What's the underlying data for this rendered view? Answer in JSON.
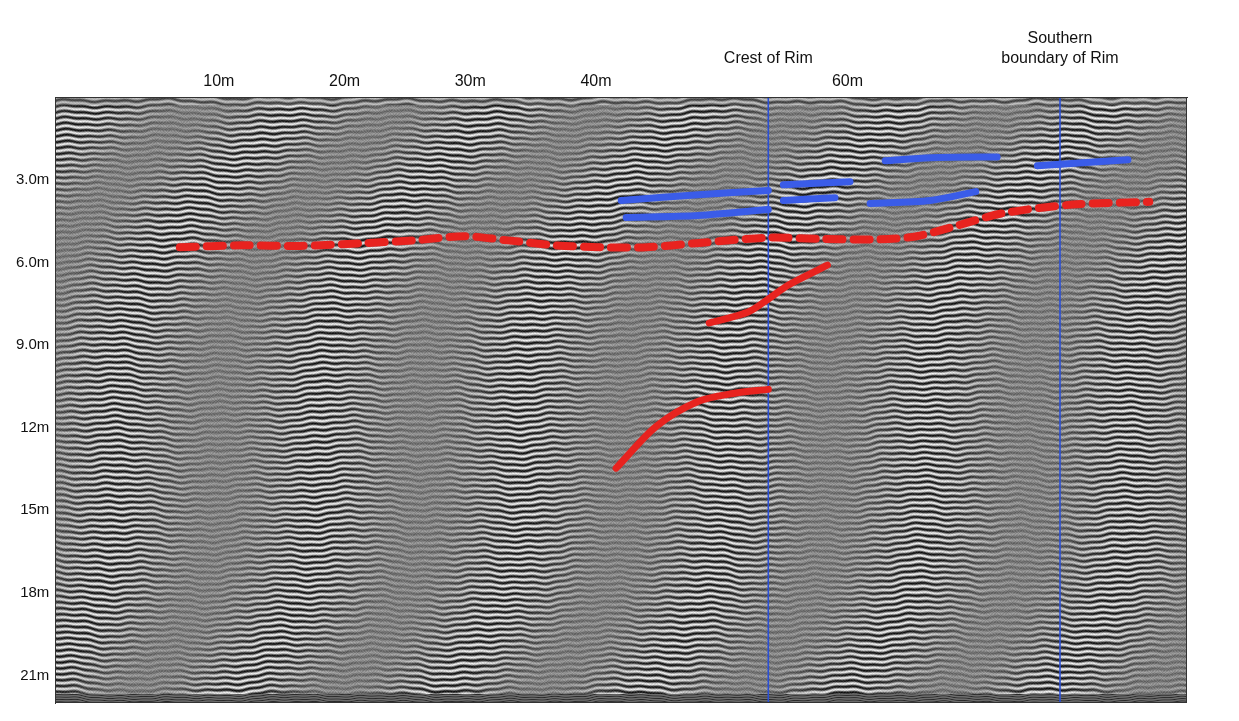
{
  "chart_data": {
    "type": "line",
    "xlim": [
      -3,
      87
    ],
    "xticks": [
      {
        "value": 10,
        "label": "10m"
      },
      {
        "value": 20,
        "label": "20m"
      },
      {
        "value": 30,
        "label": "30m"
      },
      {
        "value": 40,
        "label": "40m"
      },
      {
        "value": 60,
        "label": "60m"
      }
    ],
    "ylim": [
      22,
      0
    ],
    "yticks": [
      {
        "value": 3,
        "label": "3.0m"
      },
      {
        "value": 6,
        "label": "6.0m"
      },
      {
        "value": 9,
        "label": "9.0m"
      },
      {
        "value": 12,
        "label": "12m"
      },
      {
        "value": 15,
        "label": "15m"
      },
      {
        "value": 18,
        "label": "18m"
      },
      {
        "value": 21,
        "label": "21m"
      }
    ],
    "grid": false,
    "annotations": [
      {
        "text": "Crest of Rim",
        "x": 53.7
      },
      {
        "text": "Southern boundary of Rim",
        "x": 76.9
      }
    ],
    "series": [
      {
        "color": "#e8231f",
        "line_style": "dashed",
        "x": [
          6.9,
          11.8,
          16.5,
          21.5,
          25.5,
          29.5,
          33,
          36.8,
          40.5,
          44,
          48,
          53.7,
          58,
          62.6,
          65.5,
          68.2,
          72.3,
          77.9,
          84
        ],
        "values": [
          5.45,
          5.38,
          5.4,
          5.3,
          5.2,
          5.05,
          5.2,
          5.38,
          5.45,
          5.45,
          5.3,
          5.1,
          5.15,
          5.16,
          5.05,
          4.73,
          4.22,
          3.9,
          3.8
        ]
      },
      {
        "color": "#e8231f",
        "line_style": "solid",
        "x": [
          49,
          52.1,
          53.7,
          55.3,
          58.4
        ],
        "values": [
          8.2,
          7.8,
          7.33,
          6.82,
          6.1
        ]
      },
      {
        "color": "#e8231f",
        "line_style": "solid",
        "x": [
          41.6,
          44.8,
          48.1,
          50.9,
          53.7
        ],
        "values": [
          13.47,
          11.95,
          11.05,
          10.76,
          10.61
        ]
      },
      {
        "color": "#3a5ce8",
        "line_style": "solid",
        "x": [
          42,
          48.1,
          53.7
        ],
        "values": [
          3.75,
          3.54,
          3.39
        ]
      },
      {
        "color": "#3a5ce8",
        "line_style": "solid",
        "x": [
          42.4,
          48.1,
          53.7
        ],
        "values": [
          4.37,
          4.3,
          4.08
        ]
      },
      {
        "color": "#3a5ce8",
        "line_style": "solid",
        "x": [
          54.9,
          60.2
        ],
        "values": [
          3.18,
          3.07
        ]
      },
      {
        "color": "#3a5ce8",
        "line_style": "solid",
        "x": [
          54.9,
          59
        ],
        "values": [
          3.75,
          3.65
        ]
      },
      {
        "color": "#3a5ce8",
        "line_style": "solid",
        "x": [
          61.8,
          66.6,
          70.2
        ],
        "values": [
          3.86,
          3.75,
          3.43
        ]
      },
      {
        "color": "#3a5ce8",
        "line_style": "solid",
        "x": [
          63,
          66.6,
          71.9
        ],
        "values": [
          2.31,
          2.2,
          2.17
        ]
      },
      {
        "color": "#3a5ce8",
        "line_style": "solid",
        "x": [
          75.1,
          78.7,
          82.3
        ],
        "values": [
          2.49,
          2.38,
          2.27
        ]
      }
    ]
  }
}
